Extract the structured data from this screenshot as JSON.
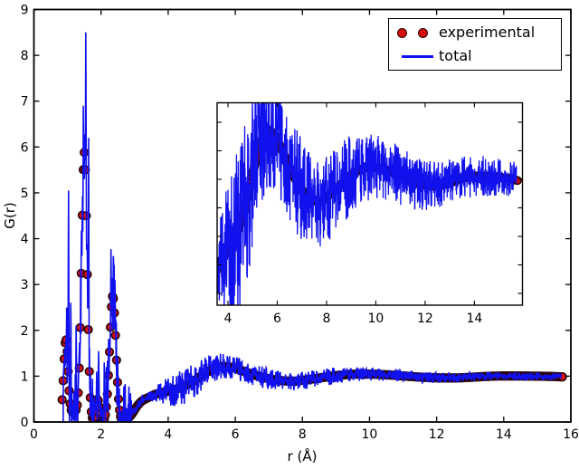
{
  "figure": {
    "background": "#ffffff",
    "frame_color": "#000000",
    "tick_label_color": "#000000"
  },
  "main_axes": {
    "xlabel": "r (Å)",
    "ylabel": "G(r)",
    "xlim": [
      0,
      16
    ],
    "ylim": [
      0,
      9
    ],
    "xticks": [
      0,
      2,
      4,
      6,
      8,
      10,
      12,
      14,
      16
    ],
    "yticks": [
      0,
      1,
      2,
      3,
      4,
      5,
      6,
      7,
      8,
      9
    ]
  },
  "legend": {
    "position": "upper right",
    "entries": [
      {
        "label": "experimental",
        "type": "marker",
        "color": "#d40f0f"
      },
      {
        "label": "total",
        "type": "line",
        "color": "#1111ee"
      }
    ]
  },
  "chart_data": {
    "type": "line",
    "title": "",
    "xlabel": "r (Å)",
    "ylabel": "G(r)",
    "xlim": [
      0,
      16
    ],
    "ylim": [
      0,
      9
    ],
    "grid": false,
    "legend_position": "upper right",
    "series": [
      {
        "name": "experimental",
        "style": "filled-circle-markers",
        "color": "#d40f0f",
        "edge_color": "#2a0505",
        "marker_radius": 4.3,
        "marker_step_r": 0.03,
        "r_range": [
          0.84,
          15.76
        ],
        "peaks": [
          {
            "center": 0.95,
            "height": 1.8,
            "sigma": 0.068
          },
          {
            "center": 1.2,
            "height": 0.22,
            "sigma": 0.1
          },
          {
            "center": 1.5,
            "height": 5.88,
            "sigma": 0.082
          },
          {
            "center": 1.9,
            "height": 0.5,
            "sigma": 0.055
          },
          {
            "center": 2.35,
            "height": 2.76,
            "sigma": 0.092
          }
        ],
        "baseline_spline": [
          [
            2.7,
            0.02
          ],
          [
            2.9,
            0.15
          ],
          [
            3.05,
            0.32
          ],
          [
            3.2,
            0.45
          ],
          [
            3.4,
            0.53
          ],
          [
            3.6,
            0.6
          ],
          [
            3.8,
            0.64
          ],
          [
            4.0,
            0.67
          ],
          [
            4.2,
            0.71
          ],
          [
            4.5,
            0.79
          ],
          [
            4.8,
            0.91
          ],
          [
            5.1,
            1.06
          ],
          [
            5.4,
            1.17
          ],
          [
            5.6,
            1.21
          ],
          [
            5.9,
            1.19
          ],
          [
            6.2,
            1.12
          ],
          [
            6.5,
            1.04
          ],
          [
            6.9,
            0.96
          ],
          [
            7.3,
            0.91
          ],
          [
            7.7,
            0.89
          ],
          [
            8.1,
            0.92
          ],
          [
            8.5,
            0.96
          ],
          [
            9.0,
            1.01
          ],
          [
            9.5,
            1.04
          ],
          [
            10.0,
            1.045
          ],
          [
            10.5,
            1.03
          ],
          [
            11.0,
            1.005
          ],
          [
            11.5,
            0.98
          ],
          [
            12.0,
            0.965
          ],
          [
            12.5,
            0.96
          ],
          [
            13.0,
            0.975
          ],
          [
            13.5,
            0.995
          ],
          [
            14.0,
            1.005
          ],
          [
            14.5,
            1.005
          ],
          [
            15.0,
            1.0
          ],
          [
            15.4,
            0.995
          ],
          [
            15.78,
            0.985
          ]
        ],
        "landmark_points": [
          [
            0.95,
            1.8
          ],
          [
            1.5,
            5.88
          ],
          [
            2.35,
            2.76
          ],
          [
            2.75,
            0.05
          ],
          [
            5.5,
            1.2
          ],
          [
            7.7,
            0.89
          ],
          [
            10.0,
            1.04
          ],
          [
            12.3,
            0.96
          ],
          [
            15.75,
            0.99
          ]
        ]
      },
      {
        "name": "total",
        "style": "noisy-line",
        "color": "#1111ee",
        "line_width": 1.6,
        "r_range": [
          0,
          15.71
        ],
        "follows": "experimental",
        "zero_below_r": 0.88,
        "noise_envelope": [
          [
            0.0,
            0.0
          ],
          [
            0.88,
            0.003
          ],
          [
            0.93,
            0.45
          ],
          [
            2.8,
            0.45
          ],
          [
            2.95,
            0.05
          ],
          [
            3.5,
            0.06
          ],
          [
            3.8,
            0.12
          ],
          [
            4.1,
            0.17
          ],
          [
            4.6,
            0.19
          ],
          [
            5.0,
            0.17
          ],
          [
            5.6,
            0.14
          ],
          [
            6.2,
            0.12
          ],
          [
            7.0,
            0.11
          ],
          [
            8.0,
            0.1
          ],
          [
            9.0,
            0.085
          ],
          [
            10.0,
            0.07
          ],
          [
            12.0,
            0.055
          ],
          [
            14.0,
            0.045
          ],
          [
            15.8,
            0.04
          ]
        ],
        "spikes": [
          [
            1.03,
            5.05,
            0.022
          ],
          [
            1.1,
            2.6,
            0.02
          ],
          [
            1.26,
            2.1,
            0.02
          ],
          [
            1.47,
            6.9,
            0.022
          ],
          [
            1.545,
            8.5,
            0.04
          ],
          [
            1.63,
            6.2,
            0.022
          ],
          [
            1.93,
            1.55,
            0.02
          ],
          [
            2.1,
            1.3,
            0.02
          ],
          [
            2.295,
            3.77,
            0.03
          ],
          [
            2.42,
            3.1,
            0.02
          ]
        ]
      }
    ],
    "inset": {
      "description": "zoomed view of the 3.5-16 Å region of the same two curves",
      "xlim": [
        3.56,
        15.95
      ],
      "ylim": [
        0.425,
        1.335
      ],
      "xticks": [
        4,
        6,
        8,
        10,
        12,
        14
      ],
      "yticks_unlabeled": 7
    }
  }
}
